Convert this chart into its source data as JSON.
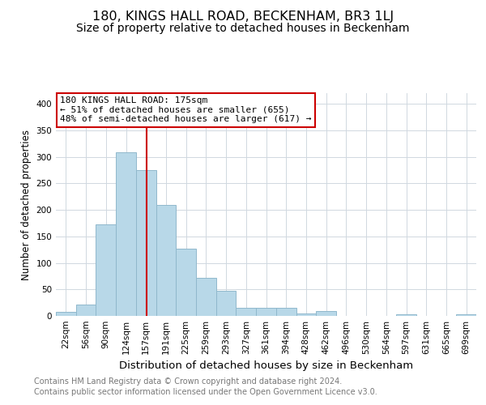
{
  "title": "180, KINGS HALL ROAD, BECKENHAM, BR3 1LJ",
  "subtitle": "Size of property relative to detached houses in Beckenham",
  "xlabel": "Distribution of detached houses by size in Beckenham",
  "ylabel": "Number of detached properties",
  "bin_labels": [
    "22sqm",
    "56sqm",
    "90sqm",
    "124sqm",
    "157sqm",
    "191sqm",
    "225sqm",
    "259sqm",
    "293sqm",
    "327sqm",
    "361sqm",
    "394sqm",
    "428sqm",
    "462sqm",
    "496sqm",
    "530sqm",
    "564sqm",
    "597sqm",
    "631sqm",
    "665sqm",
    "699sqm"
  ],
  "bar_heights": [
    8,
    21,
    172,
    308,
    275,
    210,
    127,
    72,
    48,
    16,
    15,
    15,
    5,
    9,
    0,
    0,
    0,
    3,
    0,
    0,
    3
  ],
  "bar_color": "#b8d8e8",
  "bar_edge_color": "#90b8cc",
  "vline_color": "#cc0000",
  "annotation_title": "180 KINGS HALL ROAD: 175sqm",
  "annotation_line1": "← 51% of detached houses are smaller (655)",
  "annotation_line2": "48% of semi-detached houses are larger (617) →",
  "annotation_box_color": "white",
  "annotation_box_edge": "#cc0000",
  "ylim": [
    0,
    420
  ],
  "yticks": [
    0,
    50,
    100,
    150,
    200,
    250,
    300,
    350,
    400
  ],
  "footer1": "Contains HM Land Registry data © Crown copyright and database right 2024.",
  "footer2": "Contains public sector information licensed under the Open Government Licence v3.0.",
  "title_fontsize": 11.5,
  "subtitle_fontsize": 10,
  "xlabel_fontsize": 9.5,
  "ylabel_fontsize": 8.5,
  "tick_fontsize": 7.5,
  "annotation_fontsize": 8,
  "footer_fontsize": 7
}
